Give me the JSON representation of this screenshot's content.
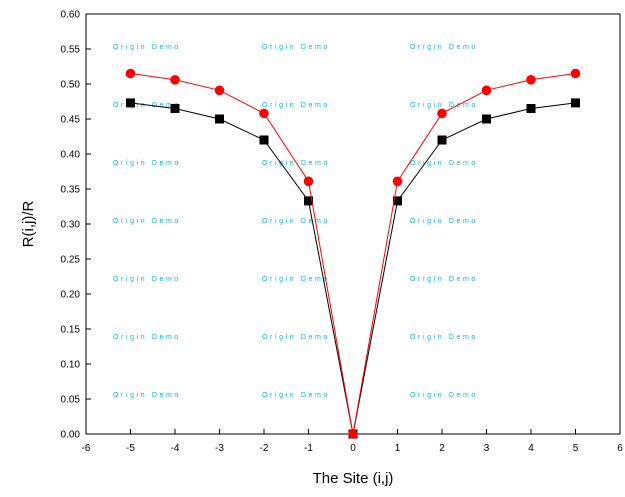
{
  "chart_data": {
    "type": "line",
    "xlabel": "The Site (i,j)",
    "ylabel": "R(i,j)/R",
    "xlim": [
      -6,
      6
    ],
    "ylim": [
      0.0,
      0.6
    ],
    "x_ticks": [
      "-6",
      "-5",
      "-4",
      "-3",
      "-2",
      "-1",
      "0",
      "1",
      "2",
      "3",
      "4",
      "5",
      "6"
    ],
    "y_ticks": [
      "0.00",
      "0.05",
      "0.10",
      "0.15",
      "0.20",
      "0.25",
      "0.30",
      "0.35",
      "0.40",
      "0.45",
      "0.50",
      "0.55",
      "0.60"
    ],
    "grid": false,
    "legend": "none",
    "watermark_text": "Origin Demo",
    "series": [
      {
        "marker": "square",
        "color": "#000000",
        "x": [
          -5,
          -4,
          -3,
          -2,
          -1,
          0,
          1,
          2,
          3,
          4,
          5
        ],
        "y": [
          0.473,
          0.465,
          0.45,
          0.42,
          0.333,
          0.0,
          0.333,
          0.42,
          0.45,
          0.465,
          0.473
        ]
      },
      {
        "marker": "circle",
        "color": "#ff0000",
        "x": [
          -5,
          -4,
          -3,
          -2,
          -1,
          0,
          1,
          2,
          3,
          4,
          5
        ],
        "y": [
          0.515,
          0.506,
          0.491,
          0.458,
          0.361,
          0.0,
          0.361,
          0.458,
          0.491,
          0.506,
          0.515
        ]
      }
    ]
  }
}
